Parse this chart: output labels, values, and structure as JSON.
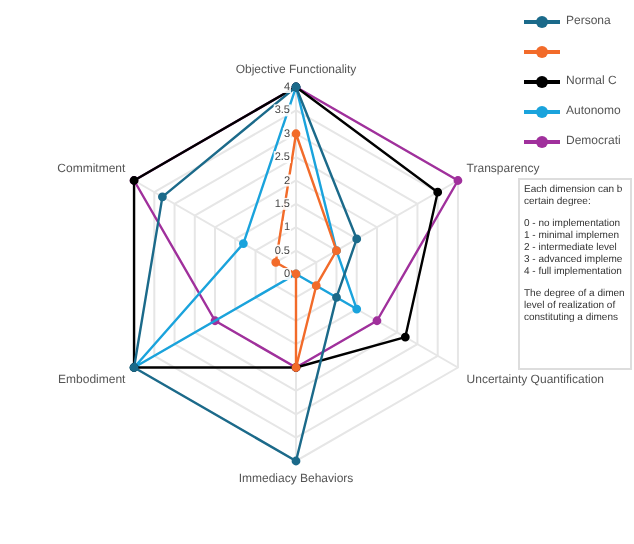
{
  "chart_data": {
    "type": "radar",
    "categories": [
      "Objective Functionality",
      "Transparency",
      "Uncertainty Quantification",
      "Immediacy Behaviors",
      "Embodiment",
      "Commitment"
    ],
    "series": [
      {
        "name": "Persona",
        "color": "#1b6a8a",
        "values": [
          4,
          1.5,
          1,
          4,
          4,
          3.3
        ]
      },
      {
        "color": "#f26b2a",
        "values": [
          3,
          1,
          0.5,
          2,
          0,
          0.5
        ]
      },
      {
        "name": "Normal C",
        "color": "#000000",
        "values": [
          4,
          3.5,
          2.7,
          2,
          4,
          4
        ]
      },
      {
        "name": "Autonomo",
        "color": "#1aa3dc",
        "values": [
          4,
          1,
          1.5,
          0,
          4,
          1.3
        ]
      },
      {
        "name": "Democrati",
        "color": "#a0309c",
        "values": [
          4,
          4,
          2,
          2,
          2,
          4
        ]
      }
    ],
    "ylim": [
      0,
      4
    ],
    "yticks": [
      0,
      0.5,
      1,
      1.5,
      2,
      2.5,
      3,
      3.5,
      4
    ],
    "grid": true,
    "marker": "circle",
    "legend": "top right",
    "annotations": [
      "Each dimension can b",
      "certain degree:",
      "0 - no implementation",
      "1 - minimal implemen",
      "2 - intermediate level",
      "3 - advanced impleme",
      "4 - full implementation",
      "The degree of a dimen",
      "level of realization of",
      "constituting a dimens"
    ]
  }
}
